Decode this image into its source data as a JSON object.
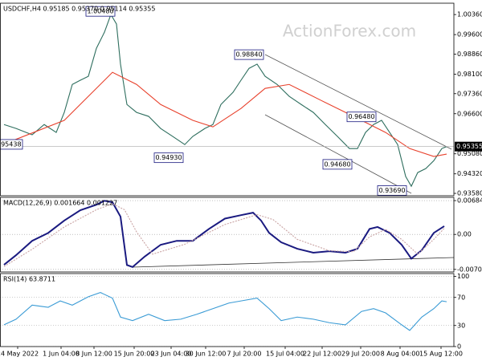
{
  "watermark": "ActionForex.com",
  "chart_data": [
    {
      "type": "line",
      "title": "USDCHF,H4  0.95185 0.95370 0.95114 0.95355",
      "xlim": [
        0,
        113
      ],
      "ylim": [
        0.9349,
        1.0079
      ],
      "yticks": [
        {
          "value": 1.0036,
          "label": "1.00360"
        },
        {
          "value": 0.996,
          "label": "0.99600"
        },
        {
          "value": 0.9886,
          "label": "0.98860"
        },
        {
          "value": 0.981,
          "label": "0.98100"
        },
        {
          "value": 0.9736,
          "label": "0.97360"
        },
        {
          "value": 0.966,
          "label": "0.96600"
        },
        {
          "value": 0.9508,
          "label": "0.95080"
        },
        {
          "value": 0.9432,
          "label": "0.94320"
        },
        {
          "value": 0.9358,
          "label": "0.93580"
        }
      ],
      "last_price": 0.95355,
      "series": [
        {
          "name": "USDCHF",
          "color": "#2e6e5e",
          "x": [
            1,
            4,
            8,
            11,
            14,
            16,
            18,
            20,
            22,
            24,
            26,
            27.6,
            29,
            30,
            31.6,
            34,
            37,
            40,
            43,
            46,
            48,
            51,
            53,
            55,
            58,
            60,
            62,
            64,
            66,
            69,
            72,
            75,
            78,
            81,
            84,
            87,
            89,
            91,
            93,
            95,
            97,
            99,
            101,
            102.4,
            104,
            106,
            108,
            110,
            111.2
          ],
          "values": [
            0.9619,
            0.9604,
            0.958,
            0.9619,
            0.9589,
            0.9665,
            0.9771,
            0.9787,
            0.9802,
            0.9908,
            0.9969,
            1.0036,
            1.0,
            0.9848,
            0.9695,
            0.9665,
            0.965,
            0.9604,
            0.9574,
            0.9543,
            0.9574,
            0.9604,
            0.9619,
            0.9695,
            0.9741,
            0.9787,
            0.9832,
            0.9848,
            0.9802,
            0.9771,
            0.9726,
            0.9695,
            0.9665,
            0.9619,
            0.9574,
            0.9528,
            0.9528,
            0.9589,
            0.9619,
            0.9635,
            0.9589,
            0.9543,
            0.9422,
            0.9385,
            0.9437,
            0.9452,
            0.9482,
            0.9528,
            0.95355
          ]
        },
        {
          "name": "MA",
          "color": "#e8412c",
          "x": [
            1,
            16,
            28,
            34,
            40,
            48,
            53,
            60,
            66,
            72,
            80,
            88,
            96,
            102,
            108,
            111.2
          ],
          "values": [
            0.9545,
            0.9635,
            0.9817,
            0.9771,
            0.9695,
            0.9635,
            0.961,
            0.968,
            0.9756,
            0.9771,
            0.971,
            0.965,
            0.9589,
            0.9528,
            0.9498,
            0.9507
          ]
        }
      ],
      "annotations": [
        {
          "value": 1.0048,
          "label": "1.00480",
          "x": 25
        },
        {
          "value": 0.9884,
          "label": "0.98840",
          "x": 62
        },
        {
          "value": 0.9648,
          "label": "0.96480",
          "x": 90
        },
        {
          "value": 0.9468,
          "label": "0.94680",
          "x": 84
        },
        {
          "value": 0.9369,
          "label": "0.93690",
          "x": 97.6
        },
        {
          "value": 0.9493,
          "label": "0.94930",
          "x": 42
        },
        {
          "value": 0.95438,
          "label": "0.95438",
          "x": 2
        }
      ]
    },
    {
      "type": "line",
      "title": "MACD(12,26,9) 0.001664 0.001227",
      "grid": true,
      "xlim": [
        0,
        113
      ],
      "ylim": [
        -0.0076,
        0.0075
      ],
      "yticks": [
        0.006844,
        {
          "value": 0,
          "label": "0.00"
        },
        -0.007086
      ],
      "series": [
        {
          "name": "MACD",
          "color": "#1a1a80",
          "x": [
            1,
            4,
            8,
            12,
            16,
            20,
            24,
            26,
            28,
            30,
            31.6,
            33,
            36,
            40,
            44,
            48,
            52,
            56,
            60,
            63,
            65,
            67,
            70,
            74,
            78,
            82,
            86,
            89,
            92,
            94,
            97,
            100,
            102.4,
            105,
            108,
            110.6
          ],
          "values": [
            -0.00615,
            -0.0042,
            -0.0013,
            0.0003,
            0.0028,
            0.0049,
            0.006,
            0.0068,
            0.0065,
            0.0036,
            -0.0062,
            -0.0066,
            -0.0045,
            -0.0021,
            -0.0013,
            -0.0013,
            0.0011,
            0.0032,
            0.0039,
            0.0044,
            0.0028,
            0.0003,
            -0.0016,
            -0.0029,
            -0.0037,
            -0.0034,
            -0.0037,
            -0.0029,
            0.0011,
            0.0015,
            0.0003,
            -0.0021,
            -0.0049,
            -0.0032,
            0.0003,
            0.001664
          ]
        },
        {
          "name": "Signal",
          "color": "#c9a3a3",
          "x": [
            1,
            8,
            16,
            24,
            28,
            31,
            34,
            38,
            46,
            56,
            64,
            68,
            74,
            82,
            88,
            92,
            96,
            100,
            104,
            108,
            110.6
          ],
          "values": [
            -0.0065,
            -0.003,
            0.0015,
            0.005,
            0.0062,
            0.005,
            0.0005,
            -0.004,
            -0.002,
            0.002,
            0.004,
            0.003,
            -0.001,
            -0.0033,
            -0.0035,
            -0.0005,
            0.001,
            -0.001,
            -0.004,
            -0.001,
            0.001227
          ]
        }
      ]
    },
    {
      "type": "line",
      "title": "RSI(14) 63.8711",
      "grid": true,
      "xlim": [
        0,
        113
      ],
      "ylim": [
        0,
        104
      ],
      "yticks": [
        100,
        70,
        30,
        0
      ],
      "xticks": [
        {
          "value": 4.4,
          "label": "24 May 2022"
        },
        {
          "value": 15.2,
          "label": "1 Jun 04:00"
        },
        {
          "value": 23.4,
          "label": "8 Jun 12:00"
        },
        {
          "value": 33.4,
          "label": "15 Jun 20:00"
        },
        {
          "value": 42.6,
          "label": "23 Jun 04:00"
        },
        {
          "value": 51.2,
          "label": "30 Jun 12:00"
        },
        {
          "value": 60.8,
          "label": "7 Jul 20:00"
        },
        {
          "value": 71,
          "label": "15 Jul 04:00"
        },
        {
          "value": 80.2,
          "label": "22 Jul 12:00"
        },
        {
          "value": 89.8,
          "label": "29 Jul 20:00"
        },
        {
          "value": 99.6,
          "label": "8 Aug 04:00"
        },
        {
          "value": 109.8,
          "label": "15 Aug 12:00"
        }
      ],
      "series": [
        {
          "name": "RSI",
          "color": "#3a9bd5",
          "x": [
            1,
            4,
            8,
            12,
            15,
            18,
            22,
            25,
            28,
            30,
            33,
            37,
            41,
            45,
            49,
            53,
            57,
            60,
            64,
            67,
            70,
            74,
            78,
            82,
            86,
            90,
            93,
            96,
            100,
            102,
            105,
            108,
            110,
            111.2
          ],
          "values": [
            31,
            39,
            59,
            56,
            65,
            59,
            71,
            77,
            69,
            42,
            37,
            46,
            37,
            39,
            46,
            54,
            62,
            65,
            69,
            54,
            37,
            42,
            39,
            34,
            31,
            50,
            54,
            48,
            31,
            23,
            42,
            54,
            65,
            63.8711
          ]
        }
      ]
    }
  ]
}
